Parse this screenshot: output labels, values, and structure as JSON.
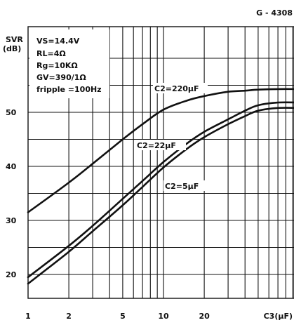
{
  "figure_code": "G - 4308",
  "chart_data": {
    "type": "line",
    "ylabel_line1": "SVR",
    "ylabel_line2": "(dB)",
    "xlabel": "C3(μF)",
    "x_scale": "log",
    "xlim": [
      1,
      100
    ],
    "ylim": [
      15,
      62
    ],
    "grid": true,
    "x_ticks": [
      1,
      2,
      5,
      10,
      20
    ],
    "x_tick_labels": [
      "1",
      "2",
      "5",
      "10",
      "20"
    ],
    "y_ticks": [
      20,
      30,
      40,
      50
    ],
    "y_tick_labels": [
      "20",
      "30",
      "40",
      "50"
    ],
    "conditions": [
      "VS=14.4V",
      "RL=4Ω",
      "Rg=10KΩ",
      "GV=390/1Ω",
      "fripple =100Hz"
    ],
    "series": [
      {
        "name": "C2=220μF",
        "x": [
          1,
          2,
          3,
          5,
          7,
          10,
          15,
          20,
          30,
          40,
          50,
          70,
          100
        ],
        "y": [
          31.5,
          37,
          40.5,
          45,
          47.8,
          50.5,
          52.2,
          53,
          53.8,
          54,
          54.2,
          54.3,
          54.3
        ]
      },
      {
        "name": "C2=22μF",
        "x": [
          1,
          2,
          3,
          5,
          7,
          10,
          15,
          20,
          30,
          40,
          50,
          70,
          100
        ],
        "y": [
          19.5,
          25.3,
          29,
          34,
          37.3,
          40.8,
          44.3,
          46.4,
          48.7,
          50.3,
          51.3,
          51.8,
          51.8
        ]
      },
      {
        "name": "C2=5μF",
        "x": [
          1,
          2,
          3,
          5,
          7,
          10,
          15,
          20,
          30,
          40,
          50,
          70,
          100
        ],
        "y": [
          18.3,
          24.2,
          28,
          32.8,
          36.2,
          39.8,
          43.3,
          45.4,
          47.8,
          49.3,
          50.3,
          50.8,
          50.8
        ]
      }
    ]
  }
}
